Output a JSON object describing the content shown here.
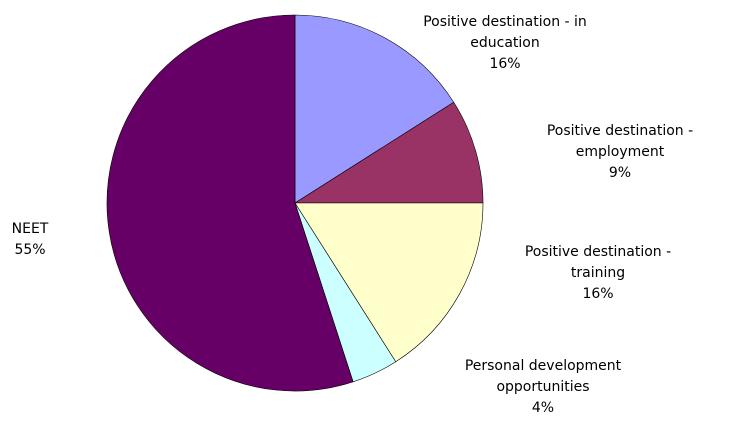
{
  "chart_data": {
    "type": "pie",
    "categories": [
      "Positive destination - in education",
      "Positive destination - employment",
      "Positive destination - training",
      "Personal development opportunities",
      "NEET"
    ],
    "values": [
      16,
      9,
      16,
      4,
      55
    ],
    "value_labels": [
      "16%",
      "9%",
      "16%",
      "4%",
      "55%"
    ],
    "colors": [
      "#9999ff",
      "#993366",
      "#ffffcc",
      "#ccffff",
      "#660066"
    ]
  }
}
